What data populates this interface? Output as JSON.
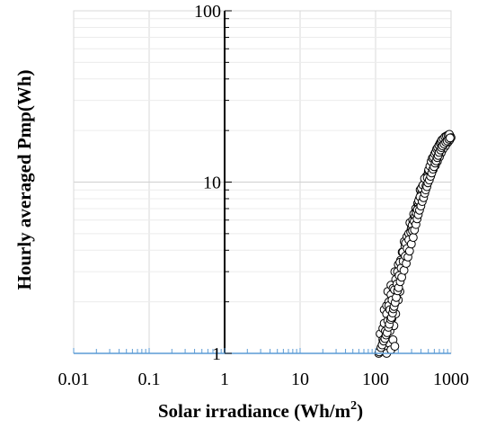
{
  "chart_data": {
    "type": "scatter",
    "title": "",
    "xlabel": "Solar irradiance (Wh/m",
    "xlabel_superscript": "2",
    "xlabel_suffix": ")",
    "ylabel": "Hourly averaged Pmp(Wh)",
    "x_scale": "log",
    "y_scale": "log",
    "xlim": [
      0.01,
      1000
    ],
    "ylim": [
      1,
      100
    ],
    "x_ticks": [
      "0.01",
      "0.1",
      "1",
      "10",
      "100",
      "1000"
    ],
    "y_ticks": [
      "1",
      "10",
      "100"
    ],
    "grid": true,
    "legend": "none",
    "marker": "open-circle",
    "colors": {
      "marker_edge": "#000000",
      "marker_fill": "#ffffff",
      "grid": "#d9d9d9",
      "x_axis_line": "#5b9bd5",
      "y_axis_line": "#000000"
    },
    "series": [
      {
        "points": [
          [
            110,
            1.0
          ],
          [
            120,
            1.05
          ],
          [
            130,
            1.1
          ],
          [
            140,
            1.0
          ],
          [
            150,
            1.15
          ],
          [
            160,
            1.05
          ],
          [
            170,
            1.2
          ],
          [
            180,
            1.1
          ],
          [
            115,
            1.3
          ],
          [
            125,
            1.4
          ],
          [
            135,
            1.25
          ],
          [
            145,
            1.5
          ],
          [
            155,
            1.35
          ],
          [
            165,
            1.6
          ],
          [
            175,
            1.45
          ],
          [
            185,
            1.7
          ],
          [
            130,
            1.8
          ],
          [
            140,
            1.9
          ],
          [
            150,
            2.0
          ],
          [
            160,
            1.75
          ],
          [
            170,
            2.1
          ],
          [
            180,
            1.95
          ],
          [
            190,
            2.2
          ],
          [
            200,
            2.05
          ],
          [
            145,
            2.3
          ],
          [
            160,
            2.5
          ],
          [
            175,
            2.4
          ],
          [
            190,
            2.7
          ],
          [
            205,
            2.6
          ],
          [
            220,
            2.9
          ],
          [
            210,
            2.3
          ],
          [
            230,
            3.1
          ],
          [
            180,
            3.0
          ],
          [
            200,
            3.3
          ],
          [
            215,
            3.5
          ],
          [
            235,
            3.4
          ],
          [
            250,
            3.8
          ],
          [
            225,
            3.9
          ],
          [
            245,
            4.2
          ],
          [
            265,
            4.0
          ],
          [
            240,
            4.5
          ],
          [
            260,
            4.8
          ],
          [
            280,
            5.0
          ],
          [
            270,
            4.4
          ],
          [
            300,
            5.5
          ],
          [
            285,
            5.8
          ],
          [
            310,
            6.0
          ],
          [
            295,
            5.3
          ],
          [
            320,
            6.5
          ],
          [
            340,
            7.0
          ],
          [
            330,
            6.2
          ],
          [
            360,
            7.5
          ],
          [
            350,
            6.8
          ],
          [
            380,
            8.0
          ],
          [
            370,
            7.3
          ],
          [
            400,
            8.5
          ],
          [
            390,
            9.0
          ],
          [
            420,
            9.5
          ],
          [
            410,
            8.8
          ],
          [
            450,
            10.0
          ],
          [
            440,
            9.3
          ],
          [
            470,
            10.8
          ],
          [
            460,
            10.2
          ],
          [
            500,
            11.5
          ],
          [
            490,
            11.0
          ],
          [
            530,
            12.0
          ],
          [
            520,
            11.4
          ],
          [
            560,
            12.8
          ],
          [
            550,
            12.2
          ],
          [
            600,
            13.5
          ],
          [
            590,
            13.0
          ],
          [
            640,
            14.2
          ],
          [
            630,
            13.6
          ],
          [
            680,
            15.0
          ],
          [
            670,
            14.4
          ],
          [
            720,
            15.8
          ],
          [
            710,
            15.2
          ],
          [
            760,
            16.5
          ],
          [
            750,
            16.0
          ],
          [
            800,
            17.0
          ],
          [
            820,
            17.5
          ],
          [
            860,
            17.8
          ],
          [
            900,
            18.0
          ],
          [
            940,
            18.3
          ],
          [
            980,
            18.5
          ],
          [
            880,
            16.8
          ],
          [
            840,
            16.2
          ],
          [
            780,
            15.5
          ],
          [
            740,
            14.8
          ],
          [
            700,
            14.0
          ],
          [
            660,
            13.2
          ],
          [
            620,
            12.5
          ],
          [
            580,
            11.8
          ],
          [
            540,
            11.0
          ],
          [
            510,
            10.4
          ],
          [
            480,
            9.8
          ],
          [
            430,
            8.2
          ],
          [
            395,
            7.6
          ],
          [
            365,
            7.0
          ],
          [
            335,
            6.3
          ],
          [
            305,
            5.6
          ],
          [
            275,
            5.0
          ],
          [
            250,
            4.4
          ],
          [
            230,
            3.9
          ],
          [
            210,
            3.4
          ],
          [
            195,
            3.0
          ],
          [
            185,
            2.7
          ],
          [
            170,
            2.4
          ],
          [
            160,
            2.2
          ],
          [
            150,
            1.9
          ],
          [
            140,
            1.7
          ],
          [
            130,
            1.5
          ],
          [
            125,
            1.2
          ],
          [
            135,
            1.35
          ],
          [
            145,
            1.55
          ],
          [
            155,
            1.8
          ],
          [
            165,
            2.05
          ],
          [
            178,
            2.35
          ],
          [
            192,
            2.55
          ],
          [
            205,
            2.85
          ],
          [
            218,
            3.15
          ],
          [
            232,
            3.45
          ],
          [
            248,
            3.7
          ],
          [
            262,
            4.1
          ],
          [
            276,
            4.6
          ],
          [
            292,
            5.1
          ],
          [
            308,
            5.2
          ],
          [
            325,
            5.9
          ],
          [
            345,
            6.6
          ],
          [
            358,
            6.9
          ],
          [
            372,
            7.8
          ],
          [
            388,
            8.2
          ],
          [
            405,
            9.2
          ],
          [
            425,
            9.6
          ],
          [
            445,
            10.5
          ],
          [
            465,
            9.5
          ],
          [
            485,
            10.6
          ],
          [
            505,
            11.8
          ],
          [
            525,
            12.4
          ],
          [
            545,
            13.2
          ],
          [
            565,
            13.8
          ],
          [
            585,
            14.0
          ],
          [
            605,
            14.6
          ],
          [
            625,
            15.0
          ],
          [
            645,
            15.6
          ],
          [
            665,
            15.9
          ],
          [
            690,
            16.4
          ],
          [
            715,
            16.9
          ],
          [
            735,
            17.2
          ],
          [
            755,
            17.6
          ],
          [
            790,
            17.9
          ],
          [
            830,
            18.4
          ],
          [
            870,
            18.6
          ],
          [
            910,
            18.8
          ],
          [
            950,
            19.0
          ],
          [
            920,
            17.2
          ],
          [
            960,
            17.6
          ],
          [
            1000,
            18.2
          ],
          [
            112,
            1.02
          ],
          [
            118,
            1.08
          ],
          [
            122,
            1.12
          ],
          [
            128,
            1.18
          ],
          [
            133,
            1.22
          ],
          [
            138,
            1.28
          ],
          [
            142,
            1.32
          ],
          [
            148,
            1.42
          ],
          [
            152,
            1.48
          ],
          [
            158,
            1.58
          ],
          [
            162,
            1.62
          ],
          [
            168,
            1.72
          ],
          [
            172,
            1.82
          ],
          [
            176,
            1.88
          ],
          [
            182,
            1.98
          ],
          [
            188,
            2.12
          ],
          [
            196,
            2.32
          ],
          [
            202,
            2.42
          ],
          [
            212,
            2.62
          ],
          [
            222,
            2.78
          ],
          [
            238,
            3.05
          ],
          [
            255,
            3.35
          ],
          [
            268,
            3.65
          ],
          [
            282,
            3.95
          ],
          [
            298,
            4.35
          ],
          [
            315,
            4.75
          ],
          [
            328,
            5.25
          ],
          [
            342,
            5.65
          ],
          [
            355,
            6.1
          ],
          [
            368,
            6.45
          ],
          [
            382,
            6.85
          ],
          [
            398,
            7.25
          ],
          [
            415,
            7.7
          ],
          [
            432,
            8.1
          ],
          [
            448,
            8.6
          ],
          [
            462,
            9.0
          ],
          [
            478,
            9.4
          ],
          [
            495,
            9.9
          ],
          [
            515,
            10.3
          ],
          [
            535,
            10.8
          ],
          [
            555,
            11.3
          ],
          [
            575,
            11.9
          ],
          [
            595,
            12.3
          ],
          [
            615,
            12.9
          ],
          [
            635,
            13.3
          ],
          [
            655,
            13.9
          ],
          [
            675,
            14.3
          ],
          [
            695,
            14.9
          ],
          [
            725,
            15.4
          ],
          [
            745,
            15.9
          ],
          [
            770,
            16.3
          ],
          [
            810,
            16.7
          ],
          [
            850,
            17.1
          ],
          [
            890,
            17.4
          ],
          [
            930,
            17.8
          ],
          [
            970,
            18.1
          ]
        ]
      }
    ]
  }
}
